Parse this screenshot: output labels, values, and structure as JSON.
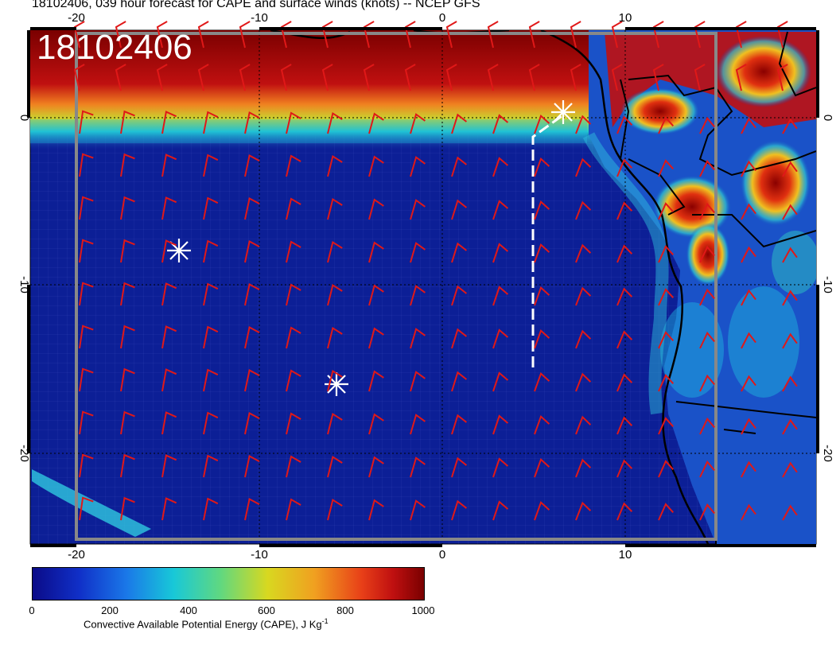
{
  "title": "18102406, 039 hour forecast for CAPE and surface winds (knots) -- NCEP GFS",
  "stamp": "18102406",
  "axes": {
    "top_ticks": [
      "-20",
      "-10",
      "0",
      "10"
    ],
    "bottom_ticks": [
      "-20",
      "-10",
      "0",
      "10"
    ],
    "left_ticks": [
      "0",
      "-10",
      "-20"
    ],
    "right_ticks": [
      "0",
      "-10",
      "-20"
    ]
  },
  "colorbar": {
    "labels": [
      "0",
      "200",
      "400",
      "600",
      "800",
      "1000"
    ],
    "title_main": "Convective Available Potential Energy (CAPE), J Kg",
    "title_sup": "-1"
  },
  "colors": {
    "wind_barb": "#e01818",
    "ocean_low": "#0a1a8c",
    "high_cape": "#8c0000",
    "coast": "#000000",
    "marker": "#ffffff"
  }
}
